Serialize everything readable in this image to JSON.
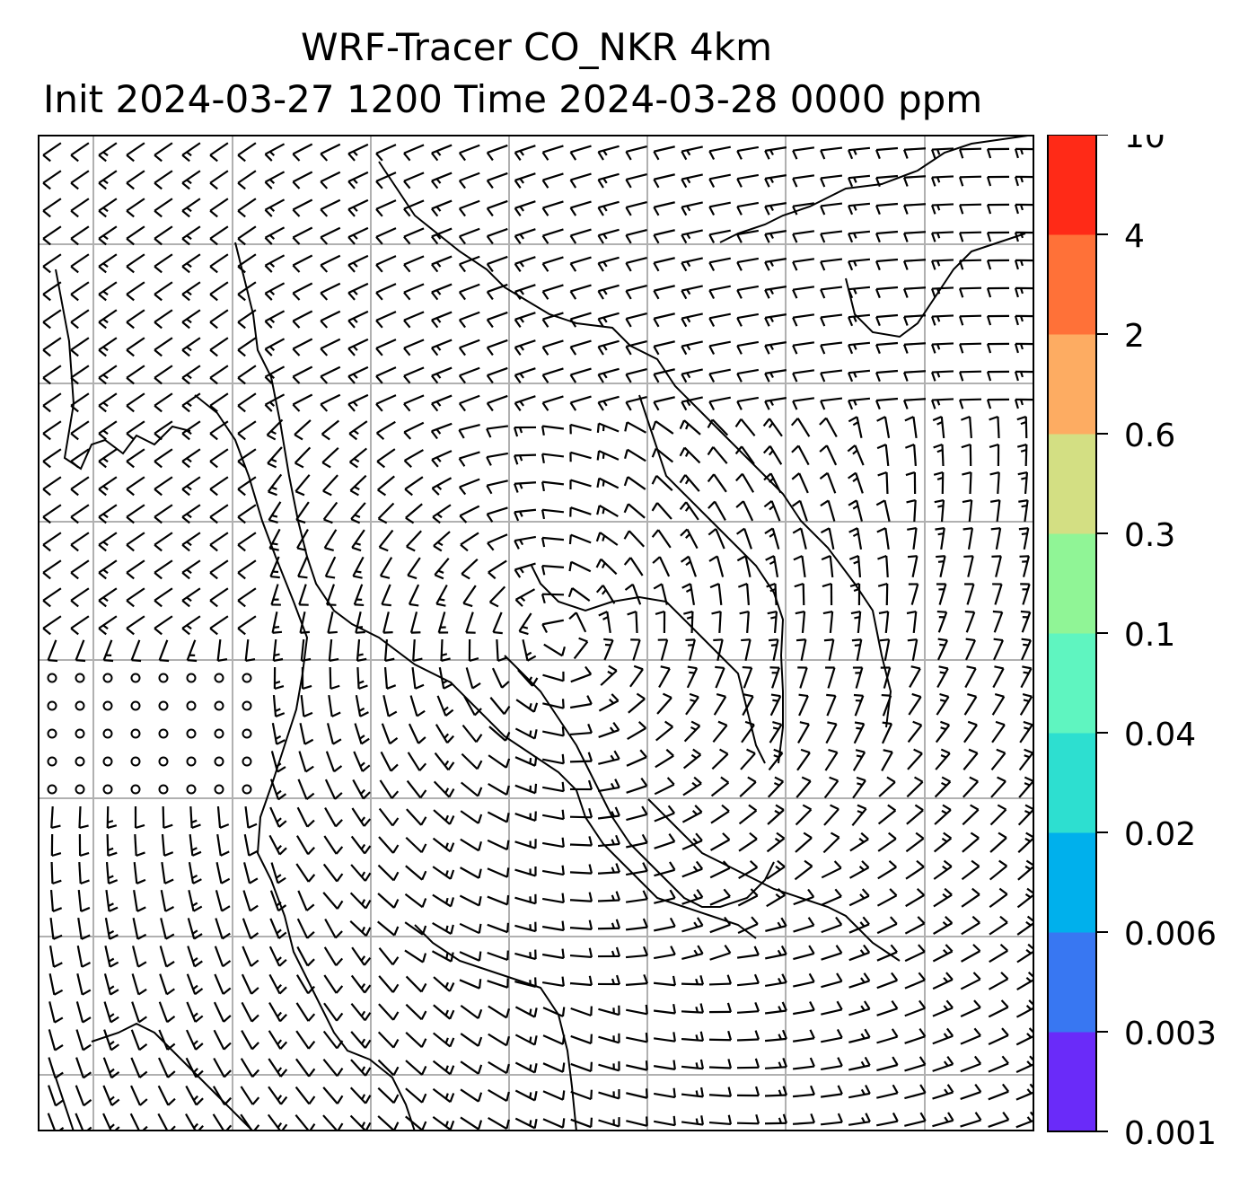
{
  "title": {
    "line1": "WRF-Tracer CO_NKR 4km",
    "line2": "Init 2024-03-27 1200 Time 2024-03-28 0000 ppm"
  },
  "colorbar": {
    "labels": [
      "0.001",
      "0.003",
      "0.006",
      "0.02",
      "0.04",
      "0.1",
      "0.3",
      "0.6",
      "2",
      "4",
      "10"
    ],
    "colors": [
      "#6a2bf9",
      "#3877f2",
      "#00b0ec",
      "#2ddfd0",
      "#5ff5c0",
      "#90f596",
      "#d3df83",
      "#fdac62",
      "#ff7138",
      "#ff2a17"
    ]
  },
  "map": {
    "background": "#ffffff",
    "gridline_color": "#b0b0b0",
    "barb_color": "#000000",
    "coastline_color": "#000000"
  }
}
